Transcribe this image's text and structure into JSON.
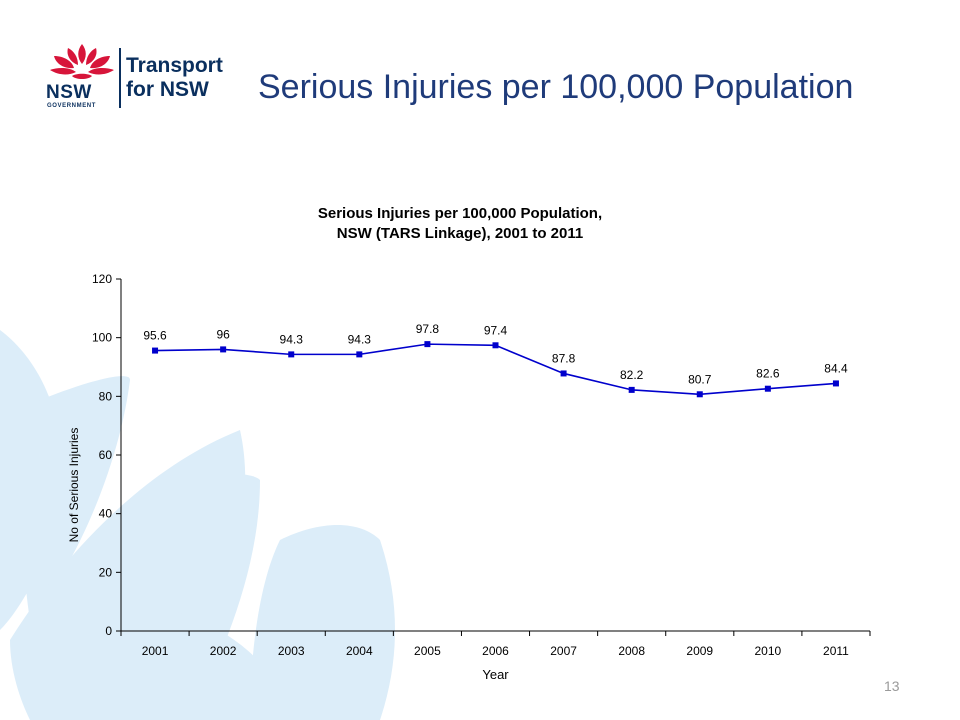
{
  "header": {
    "title": "Serious Injuries per 100,000 Population",
    "logo": {
      "brand_short": "NSW",
      "brand_sub": "GOVERNMENT",
      "name_line1": "Transport",
      "name_line2": "for NSW",
      "icon": "waratah-icon",
      "colors": {
        "petal": "#d7153a",
        "text": "#0a2f5e"
      }
    }
  },
  "chart_data": {
    "type": "line",
    "title_line1": "Serious Injuries per 100,000 Population,",
    "title_line2": "NSW (TARS Linkage), 2001 to 2011",
    "xlabel": "Year",
    "ylabel": "No of Serious Injuries",
    "categories": [
      "2001",
      "2002",
      "2003",
      "2004",
      "2005",
      "2006",
      "2007",
      "2008",
      "2009",
      "2010",
      "2011"
    ],
    "series": [
      {
        "values": [
          95.6,
          96,
          94.3,
          94.3,
          97.8,
          97.4,
          87.8,
          82.2,
          80.7,
          82.6,
          84.4
        ],
        "color": "#0000cc"
      }
    ],
    "data_labels": [
      "95.6",
      "96",
      "94.3",
      "94.3",
      "97.8",
      "97.4",
      "87.8",
      "82.2",
      "80.7",
      "82.6",
      "84.4"
    ],
    "ylim": [
      0,
      120
    ],
    "yticks": [
      0,
      20,
      40,
      60,
      80,
      100,
      120
    ],
    "grid": false,
    "legend": "none"
  },
  "footer": {
    "page_number": "13"
  },
  "theme": {
    "background_petal_color": "#d9ecf8",
    "title_color": "#1f3b7a"
  }
}
